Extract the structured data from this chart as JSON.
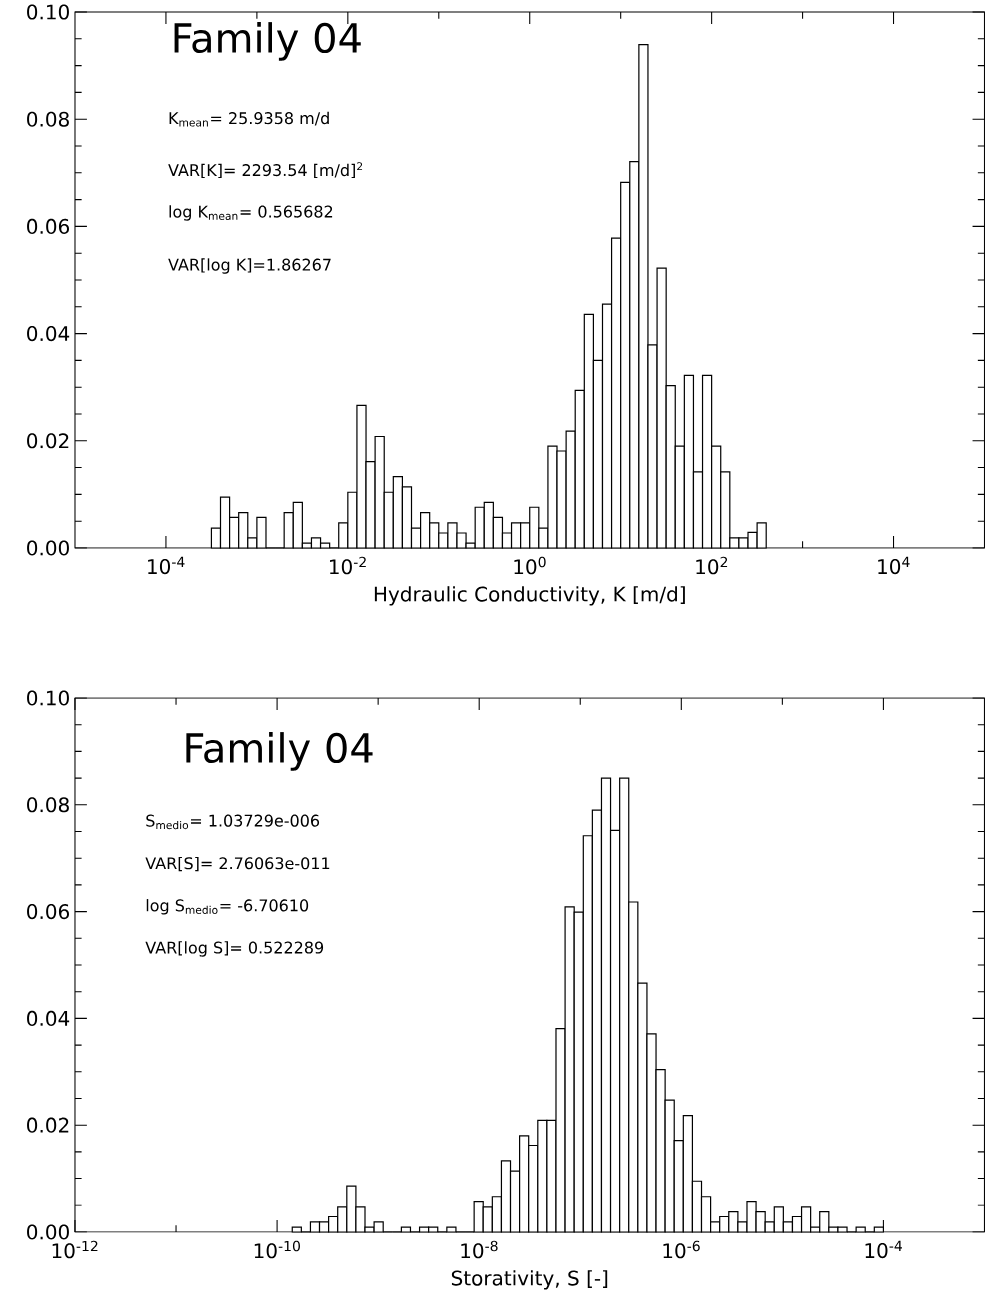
{
  "chart_data": [
    {
      "type": "histogram",
      "title": "Family 04",
      "xlabel": "Hydraulic Conductivity, K [m/d]",
      "log": "x",
      "color": "#000000",
      "xlim": [
        1e-05,
        100000.0
      ],
      "xticks": [
        {
          "value": 0.0001,
          "label": "10$^{-4}$"
        },
        {
          "value": 0.001,
          "label": null
        },
        {
          "value": 0.01,
          "label": "10$^{-2}$"
        },
        {
          "value": 0.1,
          "label": null
        },
        {
          "value": 1,
          "label": "10$^{0}$"
        },
        {
          "value": 10,
          "label": null
        },
        {
          "value": 100,
          "label": "10$^{2}$"
        },
        {
          "value": 1000,
          "label": null
        },
        {
          "value": 10000,
          "label": "10$^{4}$"
        }
      ],
      "ylim": [
        0,
        0.1
      ],
      "yticks": [
        {
          "value": 0,
          "label": "0.00"
        },
        {
          "value": 0.005,
          "label": null
        },
        {
          "value": 0.01,
          "label": null
        },
        {
          "value": 0.015,
          "label": null
        },
        {
          "value": 0.02,
          "label": "0.02"
        },
        {
          "value": 0.025,
          "label": null
        },
        {
          "value": 0.03,
          "label": null
        },
        {
          "value": 0.035,
          "label": null
        },
        {
          "value": 0.04,
          "label": "0.04"
        },
        {
          "value": 0.045,
          "label": null
        },
        {
          "value": 0.05,
          "label": null
        },
        {
          "value": 0.055,
          "label": null
        },
        {
          "value": 0.06,
          "label": "0.06"
        },
        {
          "value": 0.065,
          "label": null
        },
        {
          "value": 0.07,
          "label": null
        },
        {
          "value": 0.075,
          "label": null
        },
        {
          "value": 0.08,
          "label": "0.08"
        },
        {
          "value": 0.085,
          "label": null
        },
        {
          "value": 0.09,
          "label": null
        },
        {
          "value": 0.095,
          "label": null
        },
        {
          "value": 0.1,
          "label": "0.10"
        }
      ],
      "bins": [
        0.0003162,
        0.0003981,
        0.0005012,
        0.000631,
        0.0007943,
        0.001,
        0.001259,
        0.001585,
        0.001995,
        0.002512,
        0.003162,
        0.003981,
        0.005012,
        0.00631,
        0.007943,
        0.01,
        0.01259,
        0.01585,
        0.01995,
        0.02512,
        0.03162,
        0.03981,
        0.05012,
        0.0631,
        0.07943,
        0.1,
        0.1259,
        0.1585,
        0.1995,
        0.2512,
        0.3162,
        0.3981,
        0.5012,
        0.631,
        0.7943,
        1,
        1.259,
        1.585,
        1.995,
        2.512,
        3.162,
        3.981,
        5.012,
        6.31,
        7.943,
        10,
        12.59,
        15.85,
        19.95,
        25.12,
        31.62,
        39.81,
        50.12,
        63.1,
        79.43,
        100,
        125.9,
        158.5,
        199.5,
        251.2,
        316.2,
        398.1
      ],
      "values": [
        0.0037,
        0.0095,
        0.0057,
        0.0066,
        0.0019,
        0.0057,
        0,
        0,
        0.0066,
        0.0085,
        0.0009,
        0.0019,
        0.0009,
        0,
        0.0047,
        0.0104,
        0.0266,
        0.0161,
        0.0208,
        0.0104,
        0.0133,
        0.0114,
        0.0037,
        0.0066,
        0.0047,
        0.0028,
        0.0047,
        0.0028,
        0.0009,
        0.0076,
        0.0085,
        0.0057,
        0.0028,
        0.0047,
        0.0047,
        0.0076,
        0.0037,
        0.019,
        0.0181,
        0.0218,
        0.0294,
        0.0436,
        0.035,
        0.0455,
        0.0578,
        0.0682,
        0.0721,
        0.0939,
        0.0379,
        0.0522,
        0.0303,
        0.019,
        0.0322,
        0.0142,
        0.0322,
        0.019,
        0.0142,
        0.0019,
        0.0019,
        0.0029,
        0.0047
      ],
      "annotations": [
        "K$_{mean}$=     25.9358     m/d",
        "VAR[K]=     2293.54     [m/d]$^{2}$",
        "log K$_{mean}$= 0.565682",
        "VAR[log K]=1.86267"
      ]
    },
    {
      "type": "histogram",
      "title": "Family 04",
      "xlabel": "Storativity, S [-]",
      "log": "x",
      "color": "#000000",
      "xlim": [
        1e-12,
        0.001
      ],
      "xticks": [
        {
          "value": 1e-12,
          "label": "10$^{-12}$"
        },
        {
          "value": 1e-11,
          "label": null
        },
        {
          "value": 1e-10,
          "label": "10$^{-10}$"
        },
        {
          "value": 1e-09,
          "label": null
        },
        {
          "value": 1e-08,
          "label": "10$^{-8}$"
        },
        {
          "value": 1e-07,
          "label": null
        },
        {
          "value": 1e-06,
          "label": "10$^{-6}$"
        },
        {
          "value": 1e-05,
          "label": null
        },
        {
          "value": 0.0001,
          "label": "10$^{-4}$"
        }
      ],
      "ylim": [
        0,
        0.1
      ],
      "yticks": [
        {
          "value": 0,
          "label": "0.00"
        },
        {
          "value": 0.005,
          "label": null
        },
        {
          "value": 0.01,
          "label": null
        },
        {
          "value": 0.015,
          "label": null
        },
        {
          "value": 0.02,
          "label": "0.02"
        },
        {
          "value": 0.025,
          "label": null
        },
        {
          "value": 0.03,
          "label": null
        },
        {
          "value": 0.035,
          "label": null
        },
        {
          "value": 0.04,
          "label": "0.04"
        },
        {
          "value": 0.045,
          "label": null
        },
        {
          "value": 0.05,
          "label": null
        },
        {
          "value": 0.055,
          "label": null
        },
        {
          "value": 0.06,
          "label": "0.06"
        },
        {
          "value": 0.065,
          "label": null
        },
        {
          "value": 0.07,
          "label": null
        },
        {
          "value": 0.075,
          "label": null
        },
        {
          "value": 0.08,
          "label": "0.08"
        },
        {
          "value": 0.085,
          "label": null
        },
        {
          "value": 0.09,
          "label": null
        },
        {
          "value": 0.095,
          "label": null
        },
        {
          "value": 0.1,
          "label": "0.10"
        }
      ],
      "bins": [
        1.413e-10,
        1.738e-10,
        2.138e-10,
        2.63e-10,
        3.236e-10,
        3.981e-10,
        4.898e-10,
        6.026e-10,
        7.413e-10,
        9.12e-10,
        1.122e-09,
        1.38e-09,
        1.698e-09,
        2.089e-09,
        2.57e-09,
        3.162e-09,
        3.89e-09,
        4.786e-09,
        5.888e-09,
        7.244e-09,
        8.913e-09,
        1.096e-08,
        1.349e-08,
        1.66e-08,
        2.042e-08,
        2.512e-08,
        3.09e-08,
        3.802e-08,
        4.677e-08,
        5.754e-08,
        7.079e-08,
        8.71e-08,
        1.072e-07,
        1.318e-07,
        1.622e-07,
        1.995e-07,
        2.455e-07,
        3.02e-07,
        3.715e-07,
        4.571e-07,
        5.623e-07,
        6.918e-07,
        8.511e-07,
        1.047e-06,
        1.288e-06,
        1.585e-06,
        1.95e-06,
        2.399e-06,
        2.951e-06,
        3.631e-06,
        4.467e-06,
        5.495e-06,
        6.761e-06,
        8.318e-06,
        1.023e-05,
        1.259e-05,
        1.549e-05,
        1.905e-05,
        2.344e-05,
        2.884e-05,
        3.548e-05,
        4.365e-05,
        5.37e-05,
        6.607e-05,
        8.128e-05,
        0.0001
      ],
      "values": [
        0.0009,
        0,
        0.0019,
        0.0019,
        0.0029,
        0.0047,
        0.0086,
        0.0047,
        0.0009,
        0.0019,
        0,
        0,
        0.0009,
        0,
        0.0009,
        0.0009,
        0,
        0.0009,
        0,
        0,
        0.0057,
        0.0047,
        0.0066,
        0.0133,
        0.0114,
        0.018,
        0.0162,
        0.0209,
        0.0209,
        0.0381,
        0.0609,
        0.0599,
        0.0742,
        0.079,
        0.085,
        0.0752,
        0.085,
        0.0618,
        0.0466,
        0.0371,
        0.0304,
        0.0247,
        0.0171,
        0.0218,
        0.0095,
        0.0066,
        0.0019,
        0.0029,
        0.0038,
        0.0019,
        0.0057,
        0.0038,
        0.0019,
        0.0047,
        0.0019,
        0.0029,
        0.0047,
        0.0009,
        0.0038,
        0.0009,
        0.0009,
        0,
        0.0009,
        0,
        0.0009
      ],
      "annotations": [
        "S$_{medio}$=          1.03729e-006",
        "VAR[S]=          2.76063e-011",
        "log S$_{medio}$=            -6.70610",
        "VAR[log S]=          0.522289"
      ]
    }
  ]
}
